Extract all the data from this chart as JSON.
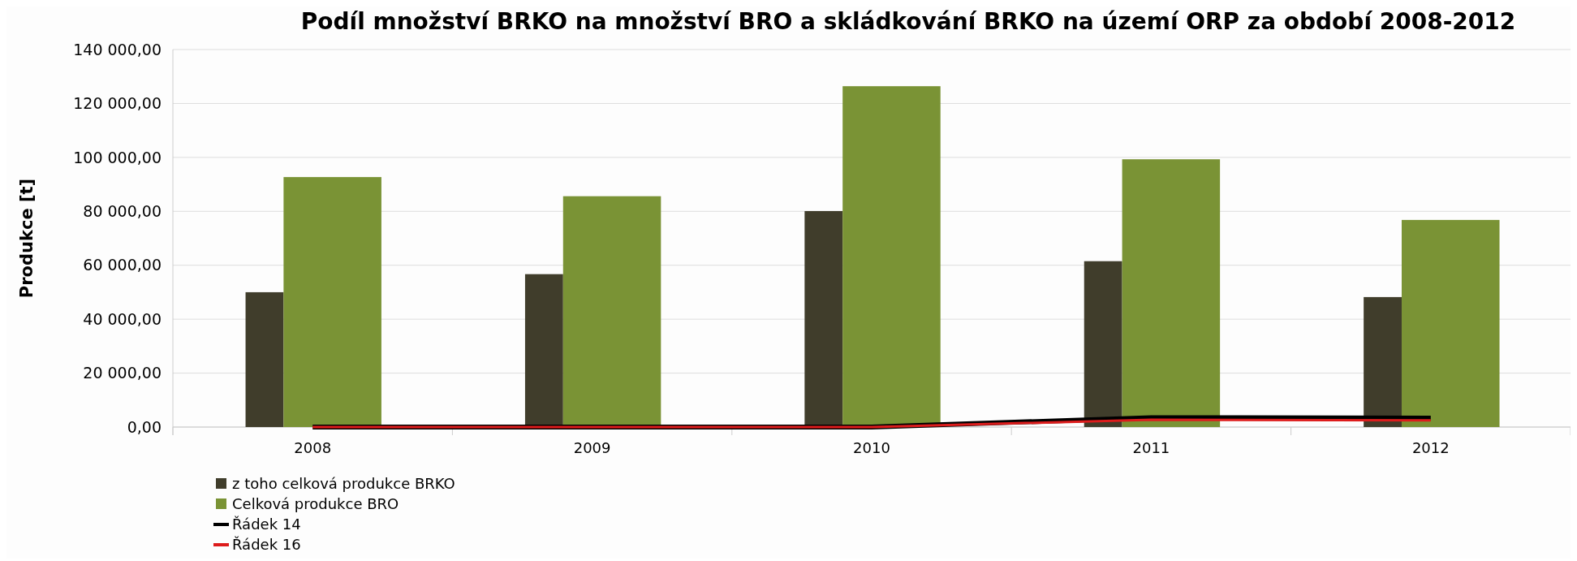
{
  "chart_data": {
    "type": "bar",
    "title": "Podíl množství BRKO na množství BRO a skládkování BRKO na území ORP za období 2008-2012",
    "ylabel": "Produkce [t]",
    "categories": [
      "2008",
      "2009",
      "2010",
      "2011",
      "2012"
    ],
    "series": [
      {
        "name": "z toho celková produkce BRKO",
        "color": "#403d2b",
        "values": [
          50000,
          56700,
          80100,
          61500,
          48200
        ]
      },
      {
        "name": "Celková produkce BRO",
        "color": "#7a9335",
        "values": [
          92700,
          85600,
          126400,
          99300,
          76800
        ]
      },
      {
        "name": "Řádek 14",
        "type": "line",
        "color": "#000000",
        "values": [
          0,
          0,
          0,
          3500,
          3300
        ]
      },
      {
        "name": "Řádek 16",
        "type": "line",
        "color": "#dd1c1c",
        "values": [
          0,
          0,
          0,
          2700,
          2500
        ]
      }
    ],
    "ylim": [
      0,
      140000
    ],
    "yticks": [
      {
        "value": 0,
        "label": "0,00"
      },
      {
        "value": 20000,
        "label": "20 000,00"
      },
      {
        "value": 40000,
        "label": "40 000,00"
      },
      {
        "value": 60000,
        "label": "60 000,00"
      },
      {
        "value": 80000,
        "label": "80 000,00"
      },
      {
        "value": 100000,
        "label": "100 000,00"
      },
      {
        "value": 120000,
        "label": "120 000,00"
      },
      {
        "value": 140000,
        "label": "140 000,00"
      }
    ],
    "grid": "y",
    "legend": "bottom left",
    "line_style": "solid",
    "marker": "none"
  }
}
